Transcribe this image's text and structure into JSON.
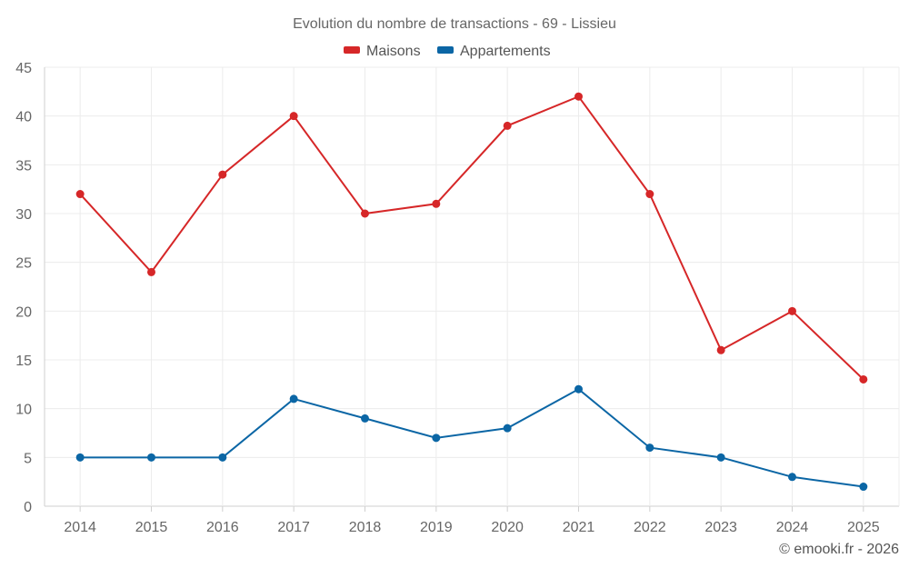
{
  "chart_data": {
    "type": "line",
    "title": "Evolution du nombre de transactions - 69 - Lissieu",
    "xlabel": "",
    "ylabel": "",
    "categories": [
      "2014",
      "2015",
      "2016",
      "2017",
      "2018",
      "2019",
      "2020",
      "2021",
      "2022",
      "2023",
      "2024",
      "2025"
    ],
    "y_ticks": [
      0,
      5,
      10,
      15,
      20,
      25,
      30,
      35,
      40,
      45
    ],
    "ylim": [
      0,
      45
    ],
    "grid": true,
    "legend_position": "top-center",
    "series": [
      {
        "name": "Maisons",
        "color": "#d62728",
        "values": [
          32,
          24,
          34,
          40,
          30,
          31,
          39,
          42,
          32,
          16,
          20,
          13
        ]
      },
      {
        "name": "Appartements",
        "color": "#0b66a5",
        "values": [
          5,
          5,
          5,
          11,
          9,
          7,
          8,
          12,
          6,
          5,
          3,
          2
        ]
      }
    ]
  },
  "credit": "© emooki.fr - 2026"
}
